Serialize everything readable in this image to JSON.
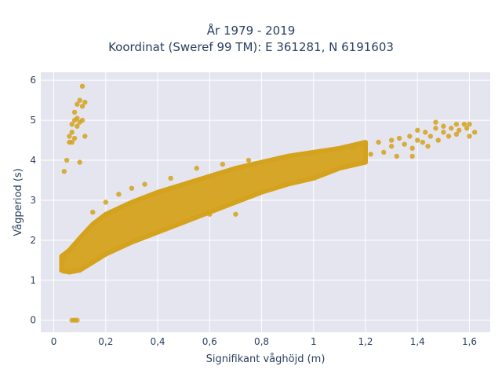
{
  "title_line1": "År 1979 - 2019",
  "title_line2": "Koordinat (Sweref 99 TM): E 361281, N 6191603",
  "chart_data": {
    "type": "scatter",
    "xlabel": "Signifikant våghöjd (m)",
    "ylabel": "Vågperiod (s)",
    "xlim": [
      -0.05,
      1.68
    ],
    "ylim": [
      -0.3,
      6.2
    ],
    "xticks": [
      0,
      0.2,
      0.4,
      0.6,
      0.8,
      1,
      1.2,
      1.4,
      1.6
    ],
    "xtick_labels": [
      "0",
      "0,2",
      "0,4",
      "0,6",
      "0,8",
      "1",
      "1,2",
      "1,4",
      "1,6"
    ],
    "yticks": [
      0,
      1,
      2,
      3,
      4,
      5,
      6
    ],
    "ytick_labels": [
      "0",
      "1",
      "2",
      "3",
      "4",
      "5",
      "6"
    ],
    "grid": true,
    "background": "#e5e5f0",
    "marker_color": "#d4a21c",
    "main_band": [
      [
        0.03,
        1.25,
        1.6
      ],
      [
        0.06,
        1.2,
        1.75
      ],
      [
        0.1,
        1.25,
        2.05
      ],
      [
        0.15,
        1.45,
        2.4
      ],
      [
        0.2,
        1.65,
        2.65
      ],
      [
        0.3,
        1.95,
        2.95
      ],
      [
        0.4,
        2.2,
        3.2
      ],
      [
        0.5,
        2.45,
        3.4
      ],
      [
        0.6,
        2.7,
        3.6
      ],
      [
        0.7,
        2.95,
        3.8
      ],
      [
        0.8,
        3.2,
        3.95
      ],
      [
        0.9,
        3.4,
        4.1
      ],
      [
        1.0,
        3.55,
        4.2
      ],
      [
        1.1,
        3.8,
        4.3
      ],
      [
        1.2,
        3.95,
        4.45
      ]
    ],
    "points": [
      {
        "x": 0.03,
        "y": 1.25
      },
      {
        "x": 0.04,
        "y": 1.22
      },
      {
        "x": 0.04,
        "y": 1.55
      },
      {
        "x": 0.04,
        "y": 3.72
      },
      {
        "x": 0.05,
        "y": 4.0
      },
      {
        "x": 0.06,
        "y": 4.45
      },
      {
        "x": 0.06,
        "y": 4.6
      },
      {
        "x": 0.07,
        "y": 4.7
      },
      {
        "x": 0.07,
        "y": 4.9
      },
      {
        "x": 0.08,
        "y": 5.0
      },
      {
        "x": 0.08,
        "y": 5.2
      },
      {
        "x": 0.09,
        "y": 5.4
      },
      {
        "x": 0.09,
        "y": 5.05
      },
      {
        "x": 0.1,
        "y": 4.95
      },
      {
        "x": 0.1,
        "y": 5.5
      },
      {
        "x": 0.11,
        "y": 5.85
      },
      {
        "x": 0.11,
        "y": 5.35
      },
      {
        "x": 0.11,
        "y": 5.0
      },
      {
        "x": 0.12,
        "y": 5.45
      },
      {
        "x": 0.12,
        "y": 4.6
      },
      {
        "x": 0.09,
        "y": 4.85
      },
      {
        "x": 0.08,
        "y": 4.55
      },
      {
        "x": 0.07,
        "y": 4.45
      },
      {
        "x": 0.1,
        "y": 3.95
      },
      {
        "x": 0.07,
        "y": 0.0
      },
      {
        "x": 0.08,
        "y": 0.0
      },
      {
        "x": 0.09,
        "y": 0.0
      },
      {
        "x": 0.15,
        "y": 2.7
      },
      {
        "x": 0.2,
        "y": 2.95
      },
      {
        "x": 0.25,
        "y": 3.15
      },
      {
        "x": 0.3,
        "y": 3.3
      },
      {
        "x": 0.35,
        "y": 3.4
      },
      {
        "x": 0.45,
        "y": 3.55
      },
      {
        "x": 0.55,
        "y": 3.8
      },
      {
        "x": 0.6,
        "y": 2.65
      },
      {
        "x": 0.7,
        "y": 2.65
      },
      {
        "x": 0.65,
        "y": 3.9
      },
      {
        "x": 0.75,
        "y": 4.0
      },
      {
        "x": 1.15,
        "y": 4.3
      },
      {
        "x": 1.2,
        "y": 4.4
      },
      {
        "x": 1.22,
        "y": 4.15
      },
      {
        "x": 1.25,
        "y": 4.45
      },
      {
        "x": 1.27,
        "y": 4.2
      },
      {
        "x": 1.3,
        "y": 4.5
      },
      {
        "x": 1.3,
        "y": 4.35
      },
      {
        "x": 1.32,
        "y": 4.1
      },
      {
        "x": 1.33,
        "y": 4.55
      },
      {
        "x": 1.35,
        "y": 4.4
      },
      {
        "x": 1.37,
        "y": 4.6
      },
      {
        "x": 1.38,
        "y": 4.3
      },
      {
        "x": 1.4,
        "y": 4.5
      },
      {
        "x": 1.42,
        "y": 4.45
      },
      {
        "x": 1.43,
        "y": 4.7
      },
      {
        "x": 1.45,
        "y": 4.6
      },
      {
        "x": 1.47,
        "y": 4.8
      },
      {
        "x": 1.47,
        "y": 4.95
      },
      {
        "x": 1.48,
        "y": 4.5
      },
      {
        "x": 1.5,
        "y": 4.7
      },
      {
        "x": 1.5,
        "y": 4.85
      },
      {
        "x": 1.52,
        "y": 4.6
      },
      {
        "x": 1.55,
        "y": 4.65
      },
      {
        "x": 1.56,
        "y": 4.75
      },
      {
        "x": 1.58,
        "y": 4.9
      },
      {
        "x": 1.59,
        "y": 4.8
      },
      {
        "x": 1.6,
        "y": 4.9
      },
      {
        "x": 1.6,
        "y": 4.6
      },
      {
        "x": 1.62,
        "y": 4.7
      },
      {
        "x": 1.38,
        "y": 4.1
      },
      {
        "x": 1.4,
        "y": 4.75
      },
      {
        "x": 1.44,
        "y": 4.35
      },
      {
        "x": 1.53,
        "y": 4.8
      },
      {
        "x": 1.55,
        "y": 4.9
      }
    ]
  }
}
